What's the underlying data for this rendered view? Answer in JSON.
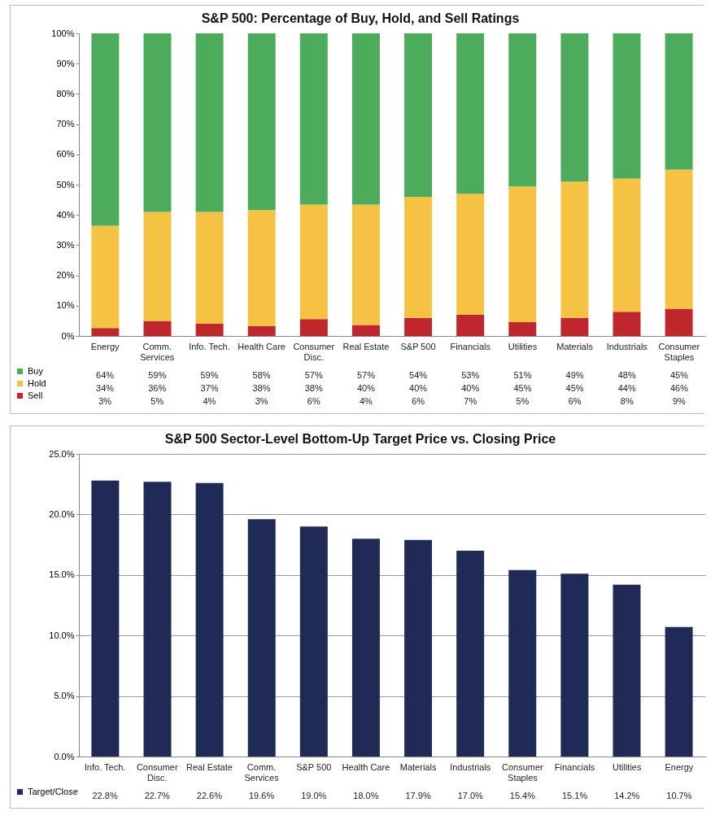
{
  "chart_data": [
    {
      "type": "bar",
      "title": "S&P 500: Percentage of Buy, Hold, and Sell Ratings",
      "stacked": true,
      "legend": "bottom left",
      "categories": [
        "Energy",
        "Comm. Services",
        "Info. Tech.",
        "Health Care",
        "Consumer Disc.",
        "Real Estate",
        "S&P 500",
        "Financials",
        "Utilities",
        "Materials",
        "Industrials",
        "Consumer Staples"
      ],
      "series": [
        {
          "name": "Sell",
          "color": "#c0272d",
          "values": [
            2.6,
            5,
            4,
            3.3,
            5.6,
            3.6,
            6,
            7,
            4.6,
            6,
            8,
            9
          ],
          "value_labels": [
            "3%",
            "5%",
            "4%",
            "3%",
            "6%",
            "4%",
            "6%",
            "7%",
            "5%",
            "6%",
            "8%",
            "9%"
          ]
        },
        {
          "name": "Hold",
          "color": "#f5c243",
          "values": [
            33.8,
            36,
            37,
            38.3,
            37.8,
            39.8,
            40,
            40,
            44.8,
            45,
            44,
            46
          ],
          "value_labels": [
            "34%",
            "36%",
            "37%",
            "38%",
            "38%",
            "40%",
            "40%",
            "40%",
            "45%",
            "45%",
            "44%",
            "46%"
          ]
        },
        {
          "name": "Buy",
          "color": "#4dac5b",
          "values": [
            63.6,
            59,
            59,
            58.4,
            56.6,
            56.6,
            54,
            53,
            50.6,
            49,
            48,
            45
          ],
          "value_labels": [
            "64%",
            "59%",
            "59%",
            "58%",
            "57%",
            "57%",
            "54%",
            "53%",
            "51%",
            "49%",
            "48%",
            "45%"
          ]
        }
      ],
      "ylim": [
        0,
        100
      ],
      "yticks": [
        {
          "value": 0,
          "label": "0%"
        },
        {
          "value": 10,
          "label": "10%"
        },
        {
          "value": 20,
          "label": "20%"
        },
        {
          "value": 30,
          "label": "30%"
        },
        {
          "value": 40,
          "label": "40%"
        },
        {
          "value": 50,
          "label": "50%"
        },
        {
          "value": 60,
          "label": "60%"
        },
        {
          "value": 70,
          "label": "70%"
        },
        {
          "value": 80,
          "label": "80%"
        },
        {
          "value": 90,
          "label": "90%"
        },
        {
          "value": 100,
          "label": "100%"
        }
      ]
    },
    {
      "type": "bar",
      "title": "S&P 500 Sector-Level Bottom-Up Target Price vs. Closing Price",
      "legend": "bottom left",
      "grid": "y",
      "categories": [
        "Info. Tech.",
        "Consumer Disc.",
        "Real Estate",
        "Comm. Services",
        "S&P 500",
        "Health Care",
        "Materials",
        "Industrials",
        "Consumer Staples",
        "Financials",
        "Utilities",
        "Energy"
      ],
      "series": [
        {
          "name": "Target/Close",
          "color": "#1f2a56",
          "values": [
            22.8,
            22.7,
            22.6,
            19.6,
            19.0,
            18.0,
            17.9,
            17.0,
            15.4,
            15.1,
            14.2,
            10.7
          ],
          "value_labels": [
            "22.8%",
            "22.7%",
            "22.6%",
            "19.6%",
            "19.0%",
            "18.0%",
            "17.9%",
            "17.0%",
            "15.4%",
            "15.1%",
            "14.2%",
            "10.7%"
          ]
        }
      ],
      "ylim": [
        0,
        25
      ],
      "yticks": [
        {
          "value": 0,
          "label": "0.0%"
        },
        {
          "value": 5,
          "label": "5.0%"
        },
        {
          "value": 10,
          "label": "10.0%"
        },
        {
          "value": 15,
          "label": "15.0%"
        },
        {
          "value": 20,
          "label": "20.0%"
        },
        {
          "value": 25,
          "label": "25.0%"
        }
      ]
    }
  ]
}
